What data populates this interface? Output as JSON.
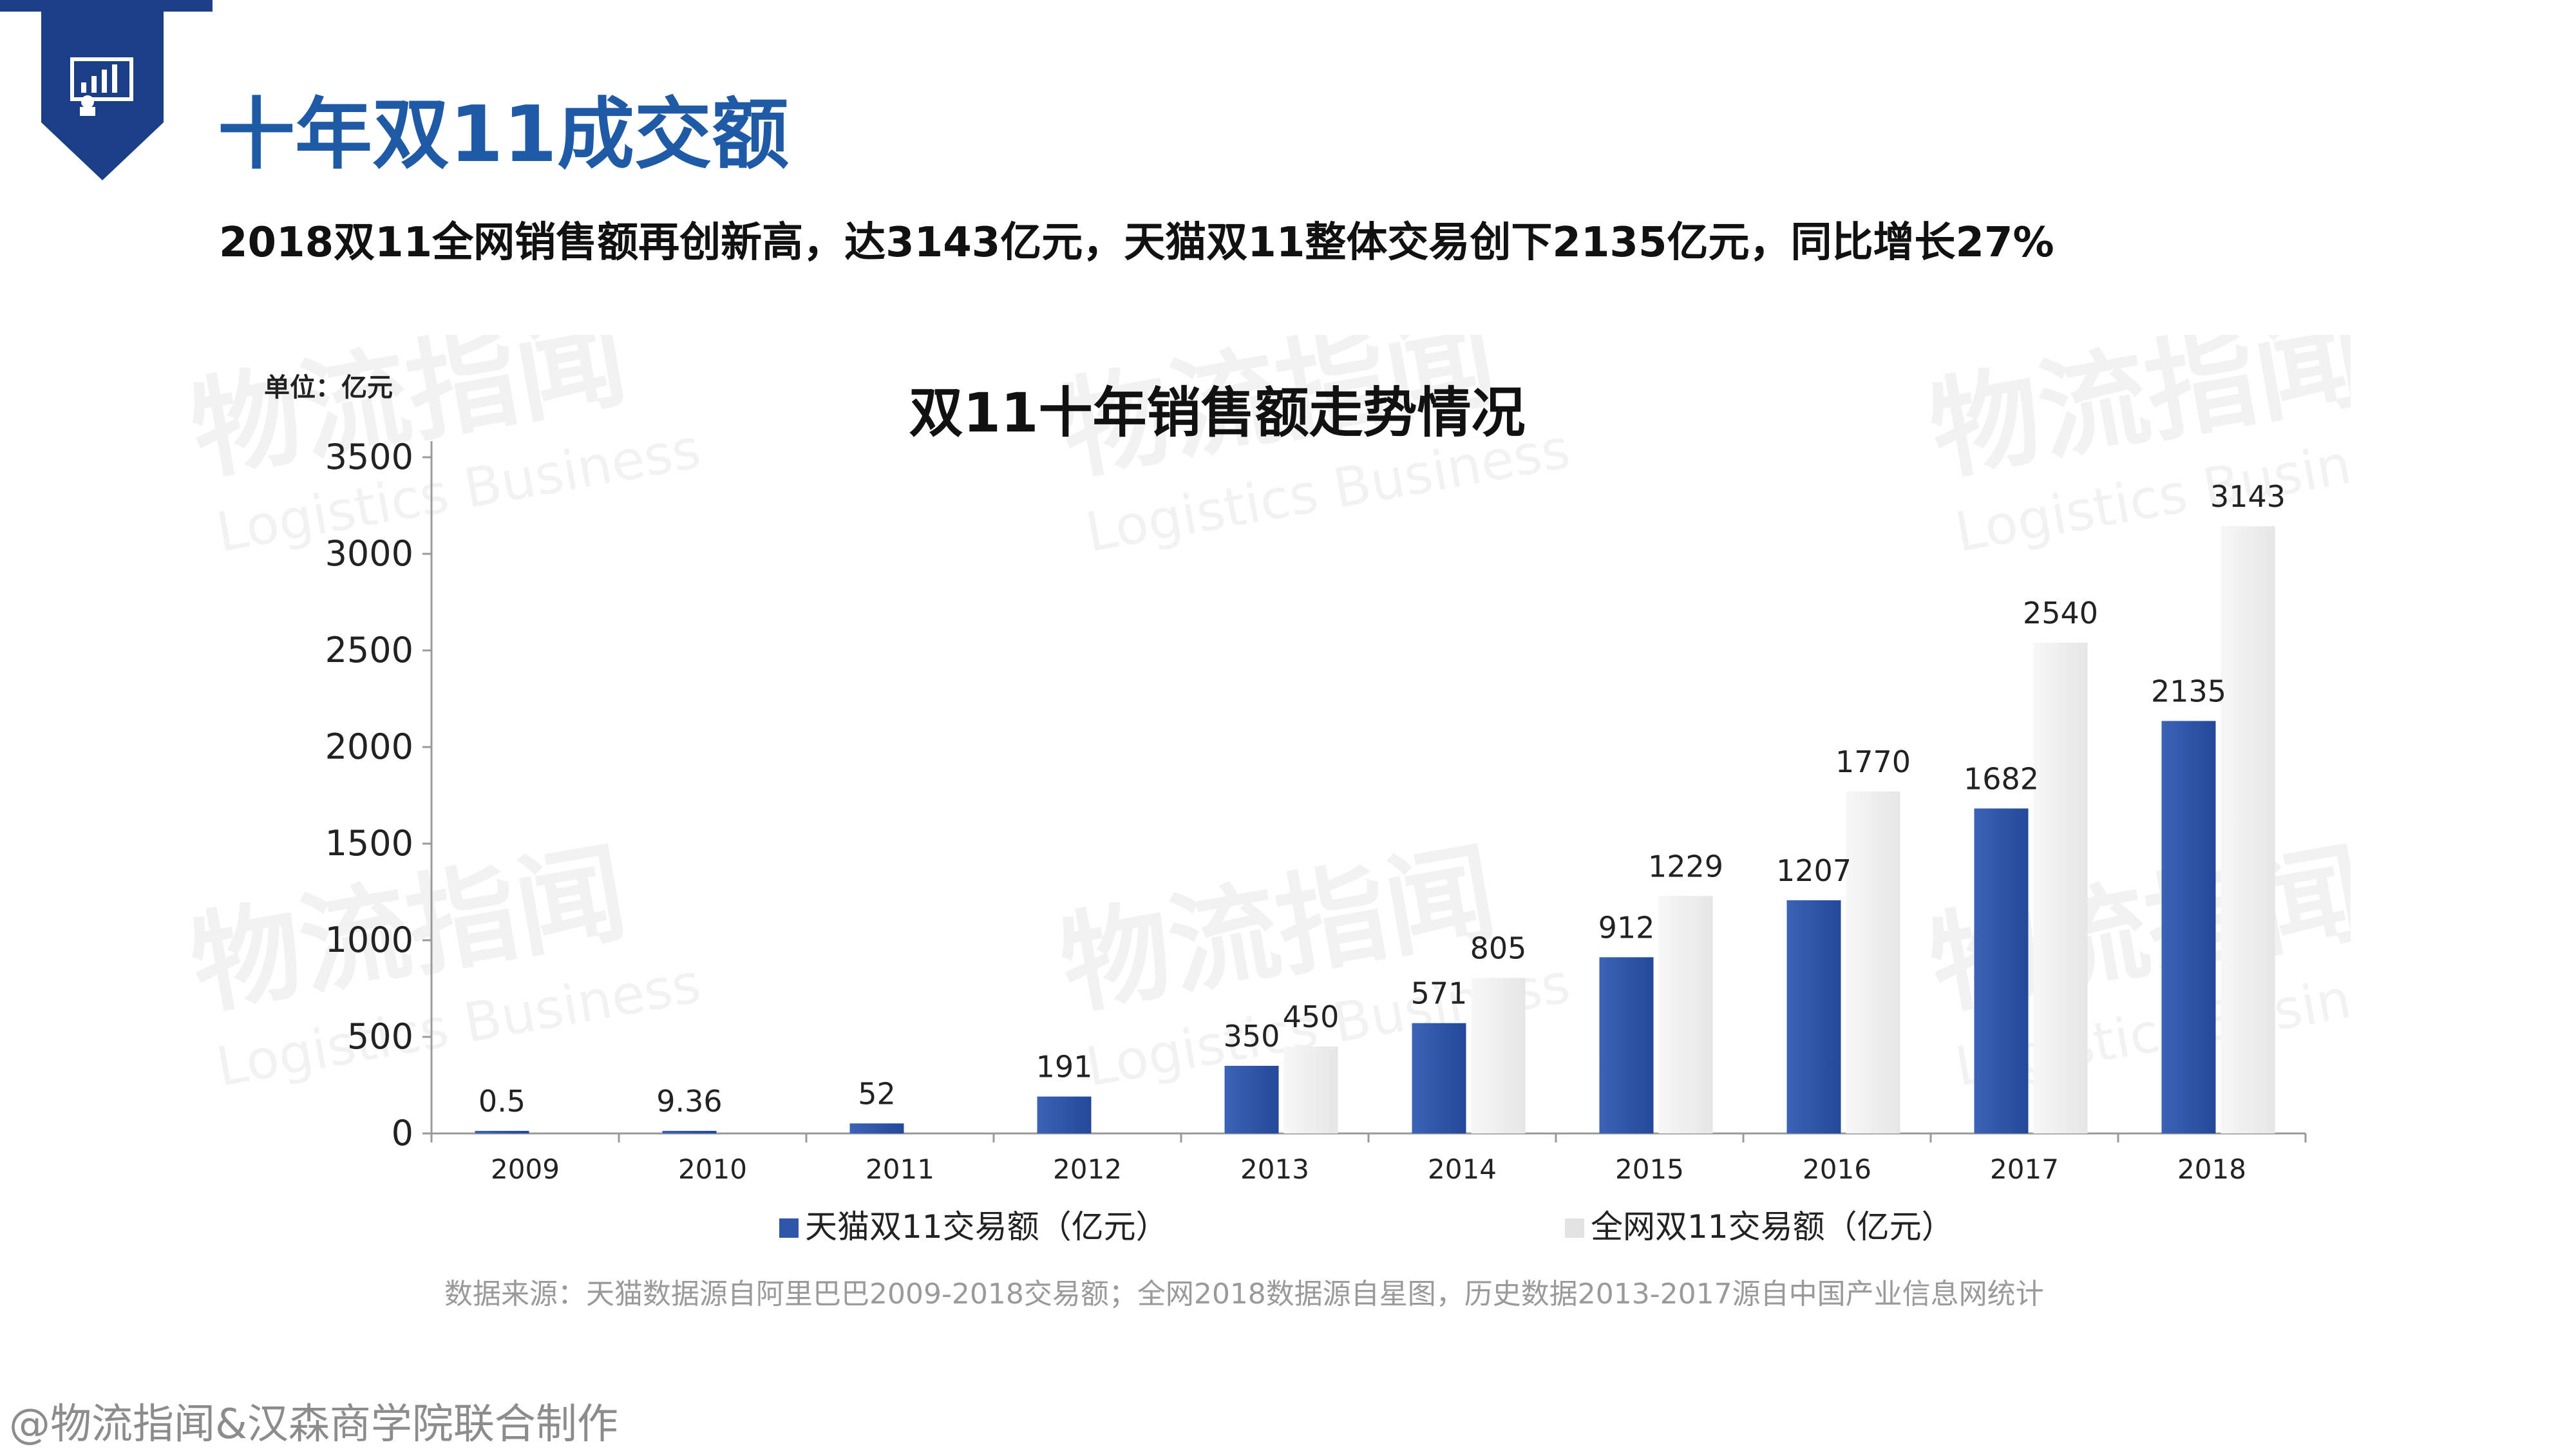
{
  "page": {
    "title": "十年双11成交额",
    "subtitle": "2018双11全网销售额再创新高，达3143亿元，天猫双11整体交易创下2135亿元，同比增长27%",
    "source": "数据来源：天猫数据源自阿里巴巴2009-2018交易额；全网2018数据源自星图，历史数据2013-2017源自中国产业信息网统计",
    "footer": "@物流指闻&汉森商学院联合制作",
    "watermark": {
      "cn": "物流指闻",
      "en": "Logistics Business"
    },
    "badge_icon": "presentation-board-icon"
  },
  "colors": {
    "accent": "#1f5aa6",
    "badge": "#1b3f86",
    "tmall_series": "#2f56a8",
    "total_series": "#efefef",
    "axis": "#9a9a9a"
  },
  "chart_data": {
    "type": "bar",
    "title": "双11十年销售额走势情况",
    "unit_label": "单位：亿元",
    "categories": [
      "2009",
      "2010",
      "2011",
      "2012",
      "2013",
      "2014",
      "2015",
      "2016",
      "2017",
      "2018"
    ],
    "series": [
      {
        "name": "天猫双11交易额（亿元）",
        "values": [
          0.5,
          9.36,
          52,
          191,
          350,
          571,
          912,
          1207,
          1682,
          2135
        ],
        "labels": [
          "0.5",
          "9.36",
          "52",
          "191",
          "350",
          "571",
          "912",
          "1207",
          "1682",
          "2135"
        ]
      },
      {
        "name": "全网双11交易额（亿元）",
        "values": [
          null,
          null,
          null,
          null,
          450,
          805,
          1229,
          1770,
          2540,
          3143
        ],
        "labels": [
          "",
          "",
          "",
          "",
          "450",
          "805",
          "1229",
          "1770",
          "2540",
          "3143"
        ]
      }
    ],
    "ylim": [
      0,
      3500
    ],
    "yticks": [
      0,
      500,
      1000,
      1500,
      2000,
      2500,
      3000,
      3500
    ],
    "grid": false,
    "legend_position": "bottom"
  }
}
